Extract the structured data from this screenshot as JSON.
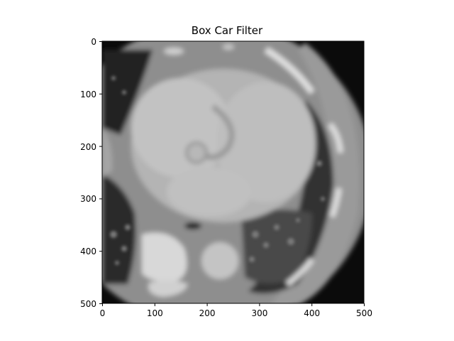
{
  "figure": {
    "title": "Box Car Filter",
    "image_description_icon": "ct-axial-chest-slice",
    "x_axis": {
      "ticks": [
        "0",
        "100",
        "200",
        "300",
        "400",
        "500"
      ]
    },
    "y_axis": {
      "ticks": [
        "0",
        "100",
        "200",
        "300",
        "400",
        "500"
      ]
    }
  }
}
